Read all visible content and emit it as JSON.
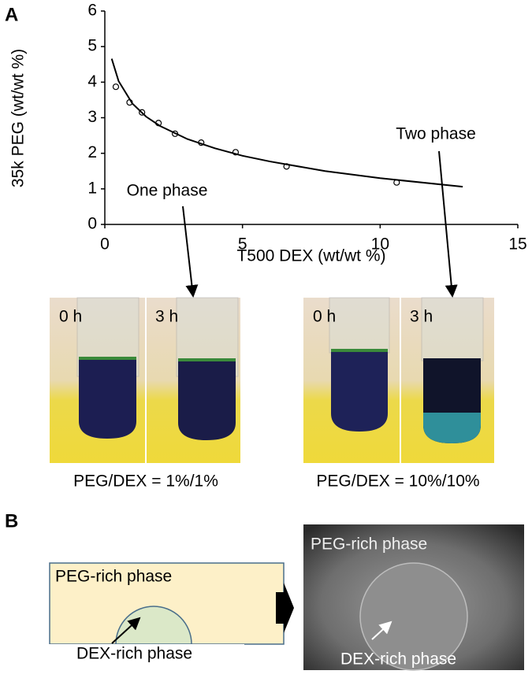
{
  "panel_labels": [
    "A",
    "B"
  ],
  "chart_data": {
    "type": "scatter",
    "x_label": "T500 DEX (wt/wt %)",
    "y_label": "35k PEG (wt/wt %)",
    "annotations": [
      "One phase",
      "Two phase"
    ],
    "series": [
      {
        "style": "markers",
        "color": "#000000",
        "x": [
          0.4,
          0.9,
          1.35,
          1.95,
          2.55,
          3.5,
          4.75,
          6.6,
          10.6
        ],
        "values": [
          3.87,
          3.43,
          3.15,
          2.85,
          2.55,
          2.3,
          2.03,
          1.63,
          1.18
        ]
      },
      {
        "style": "line",
        "color": "#000000",
        "x": [
          0.25,
          0.5,
          1,
          1.5,
          2,
          3,
          4,
          5,
          6,
          8,
          10,
          13
        ],
        "values": [
          4.66,
          4.03,
          3.4,
          3.03,
          2.77,
          2.4,
          2.14,
          1.93,
          1.77,
          1.5,
          1.3,
          1.06
        ]
      }
    ],
    "xlim": [
      0,
      15
    ],
    "xticks": [
      0,
      5,
      10,
      15
    ],
    "ylim": [
      0,
      6
    ],
    "yticks": [
      0,
      1,
      2,
      3,
      4,
      5,
      6
    ],
    "grid": false
  },
  "photos": [
    {
      "labels": [
        "0 h",
        "3 h"
      ],
      "caption": "PEG/DEX = 1%/1%"
    },
    {
      "labels": [
        "0 h",
        "3 h"
      ],
      "caption": "PEG/DEX = 10%/10%"
    }
  ],
  "diagram": {
    "outer": "PEG-rich phase",
    "inner": "DEX-rich phase"
  },
  "micrograph": {
    "outer": "PEG-rich phase",
    "inner": "DEX-rich phase"
  }
}
